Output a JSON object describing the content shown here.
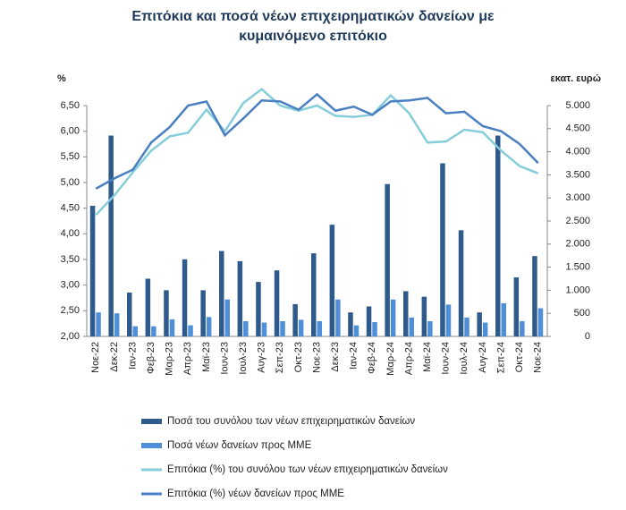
{
  "chart_data": {
    "type": "bar",
    "title": "Επιτόκια και ποσά νέων επιχειρηματικών δανείων με κυμαινόμενο επιτόκιο",
    "y_label": "%",
    "y2_label": "εκατ. ευρώ",
    "categories": [
      "Νοε-22",
      "Δεκ-22",
      "Ιαν-23",
      "Φεβ-23",
      "Μαρ-23",
      "Απρ-23",
      "Μαϊ-23",
      "Ιουν-23",
      "Ιουλ-23",
      "Αυγ-23",
      "Σεπ-23",
      "Οκτ-23",
      "Νοε-23",
      "Δεκ-23",
      "Ιαν-24",
      "Φεβ-24",
      "Μαρ-24",
      "Απρ-24",
      "Μαϊ-24",
      "Ιουν-24",
      "Ιουλ-24",
      "Αυγ-24",
      "Σεπ-24",
      "Οκτ-24",
      "Νοε-24"
    ],
    "ylim": [
      2,
      6.5
    ],
    "yticks": [
      {
        "value": 2,
        "label": "2,00"
      },
      {
        "value": 2.5,
        "label": "2,50"
      },
      {
        "value": 3,
        "label": "3,00"
      },
      {
        "value": 3.5,
        "label": "3,50"
      },
      {
        "value": 4,
        "label": "4,00"
      },
      {
        "value": 4.5,
        "label": "4,50"
      },
      {
        "value": 5,
        "label": "5,00"
      },
      {
        "value": 5.5,
        "label": "5,50"
      },
      {
        "value": 6,
        "label": "6,00"
      },
      {
        "value": 6.5,
        "label": "6,50"
      }
    ],
    "y2lim": [
      0,
      5000
    ],
    "y2ticks": [
      0,
      500,
      {
        "value": 1000,
        "label": "1.000"
      },
      {
        "value": 1500,
        "label": "1.500"
      },
      {
        "value": 2000,
        "label": "2.000"
      },
      {
        "value": 2500,
        "label": "2.500"
      },
      {
        "value": 3000,
        "label": "3.000"
      },
      {
        "value": 3500,
        "label": "3.500"
      },
      {
        "value": 4000,
        "label": "4.000"
      },
      {
        "value": 4500,
        "label": "4.500"
      },
      {
        "value": 5000,
        "label": "5.000"
      }
    ],
    "legend": "bottom",
    "series": [
      {
        "name": "Ποσά του συνόλου των νέων επιχειρηματικών δανείων",
        "type": "bar",
        "axis": "y2",
        "color": "#2f5b8c",
        "values": [
          2830,
          4350,
          950,
          1250,
          1000,
          1670,
          1000,
          1850,
          1630,
          1180,
          1430,
          700,
          1800,
          2420,
          520,
          650,
          3300,
          980,
          860,
          3750,
          2300,
          520,
          4350,
          1280,
          1740
        ]
      },
      {
        "name": "Ποσά νέων δανείων προς ΜΜΕ",
        "type": "bar",
        "axis": "y2",
        "color": "#4f8fd8",
        "values": [
          520,
          500,
          220,
          220,
          370,
          240,
          420,
          800,
          330,
          300,
          330,
          360,
          330,
          800,
          240,
          310,
          800,
          410,
          330,
          690,
          410,
          300,
          720,
          330,
          610
        ]
      },
      {
        "name": "Επιτόκια (%) του συνόλου των νέων επιχειρηματικών δανείων",
        "type": "line",
        "color": "#86cdd9",
        "values": [
          4.37,
          4.75,
          5.2,
          5.62,
          5.9,
          5.97,
          6.42,
          6.0,
          6.55,
          6.82,
          6.5,
          6.4,
          6.5,
          6.3,
          6.28,
          6.32,
          6.7,
          6.35,
          5.78,
          5.8,
          6.03,
          5.98,
          5.62,
          5.32,
          5.18
        ]
      },
      {
        "name": "Επιτόκια (%) νέων δανείων προς ΜΜΕ",
        "type": "line",
        "color": "#4a7fc1",
        "values": [
          4.88,
          5.08,
          5.25,
          5.78,
          6.08,
          6.5,
          6.58,
          5.92,
          6.25,
          6.6,
          6.58,
          6.42,
          6.72,
          6.4,
          6.48,
          6.32,
          6.58,
          6.6,
          6.65,
          6.35,
          6.38,
          6.1,
          6.0,
          5.75,
          5.38
        ]
      }
    ]
  }
}
